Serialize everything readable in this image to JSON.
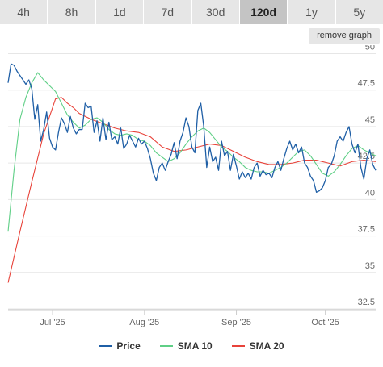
{
  "range_buttons": [
    {
      "label": "4h",
      "active": false
    },
    {
      "label": "8h",
      "active": false
    },
    {
      "label": "1d",
      "active": false
    },
    {
      "label": "7d",
      "active": false
    },
    {
      "label": "30d",
      "active": false
    },
    {
      "label": "120d",
      "active": true
    },
    {
      "label": "1y",
      "active": false
    },
    {
      "label": "5y",
      "active": false
    }
  ],
  "remove_graph_label": "remove graph",
  "colors": {
    "price": "#1f5fa6",
    "sma10": "#5fcf86",
    "sma20": "#e8433a",
    "grid": "#e6e6e6"
  },
  "chart_data": {
    "type": "line",
    "title": "",
    "xlabel": "",
    "ylabel": "",
    "ylim": [
      32.5,
      50
    ],
    "yticks": [
      32.5,
      35,
      37.5,
      40,
      42.5,
      45,
      47.5,
      50
    ],
    "xlim": [
      "2025-06-16",
      "2025-10-18"
    ],
    "xticks": [
      {
        "date": "2025-07-01",
        "label": "Jul '25"
      },
      {
        "date": "2025-08-01",
        "label": "Aug '25"
      },
      {
        "date": "2025-09-01",
        "label": "Sep '25"
      },
      {
        "date": "2025-10-01",
        "label": "Oct '25"
      }
    ],
    "grid": true,
    "legend_position": "bottom-center",
    "series": [
      {
        "name": "Price",
        "color_key": "price",
        "points": [
          [
            "2025-06-16",
            48.0
          ],
          [
            "2025-06-17",
            49.3
          ],
          [
            "2025-06-18",
            49.2
          ],
          [
            "2025-06-19",
            48.8
          ],
          [
            "2025-06-20",
            48.5
          ],
          [
            "2025-06-21",
            48.2
          ],
          [
            "2025-06-22",
            47.9
          ],
          [
            "2025-06-23",
            48.2
          ],
          [
            "2025-06-24",
            47.6
          ],
          [
            "2025-06-25",
            45.5
          ],
          [
            "2025-06-26",
            46.5
          ],
          [
            "2025-06-27",
            44.0
          ],
          [
            "2025-06-28",
            44.8
          ],
          [
            "2025-06-29",
            46.0
          ],
          [
            "2025-06-30",
            44.2
          ],
          [
            "2025-07-01",
            43.6
          ],
          [
            "2025-07-02",
            43.4
          ],
          [
            "2025-07-03",
            44.6
          ],
          [
            "2025-07-04",
            45.6
          ],
          [
            "2025-07-05",
            45.2
          ],
          [
            "2025-07-06",
            44.6
          ],
          [
            "2025-07-07",
            45.7
          ],
          [
            "2025-07-08",
            44.9
          ],
          [
            "2025-07-09",
            44.5
          ],
          [
            "2025-07-10",
            44.8
          ],
          [
            "2025-07-11",
            44.8
          ],
          [
            "2025-07-12",
            46.6
          ],
          [
            "2025-07-13",
            46.3
          ],
          [
            "2025-07-14",
            46.4
          ],
          [
            "2025-07-15",
            44.6
          ],
          [
            "2025-07-16",
            45.4
          ],
          [
            "2025-07-17",
            44.0
          ],
          [
            "2025-07-18",
            45.6
          ],
          [
            "2025-07-19",
            44.1
          ],
          [
            "2025-07-20",
            45.3
          ],
          [
            "2025-07-21",
            44.1
          ],
          [
            "2025-07-22",
            44.3
          ],
          [
            "2025-07-23",
            43.8
          ],
          [
            "2025-07-24",
            44.9
          ],
          [
            "2025-07-25",
            43.5
          ],
          [
            "2025-07-26",
            43.8
          ],
          [
            "2025-07-27",
            44.4
          ],
          [
            "2025-07-28",
            44.0
          ],
          [
            "2025-07-29",
            43.6
          ],
          [
            "2025-07-30",
            44.2
          ],
          [
            "2025-07-31",
            43.8
          ],
          [
            "2025-08-01",
            44.0
          ],
          [
            "2025-08-02",
            43.5
          ],
          [
            "2025-08-03",
            42.8
          ],
          [
            "2025-08-04",
            41.8
          ],
          [
            "2025-08-05",
            41.3
          ],
          [
            "2025-08-06",
            42.2
          ],
          [
            "2025-08-07",
            42.5
          ],
          [
            "2025-08-08",
            42.0
          ],
          [
            "2025-08-09",
            42.6
          ],
          [
            "2025-08-10",
            43.1
          ],
          [
            "2025-08-11",
            43.9
          ],
          [
            "2025-08-12",
            42.8
          ],
          [
            "2025-08-13",
            44.0
          ],
          [
            "2025-08-14",
            44.6
          ],
          [
            "2025-08-15",
            45.6
          ],
          [
            "2025-08-16",
            45.0
          ],
          [
            "2025-08-17",
            43.6
          ],
          [
            "2025-08-18",
            43.2
          ],
          [
            "2025-08-19",
            46.1
          ],
          [
            "2025-08-20",
            46.6
          ],
          [
            "2025-08-21",
            45.0
          ],
          [
            "2025-08-22",
            42.2
          ],
          [
            "2025-08-23",
            43.6
          ],
          [
            "2025-08-24",
            42.6
          ],
          [
            "2025-08-25",
            42.9
          ],
          [
            "2025-08-26",
            42.0
          ],
          [
            "2025-08-27",
            44.0
          ],
          [
            "2025-08-28",
            43.0
          ],
          [
            "2025-08-29",
            43.3
          ],
          [
            "2025-08-30",
            42.0
          ],
          [
            "2025-08-31",
            43.1
          ],
          [
            "2025-09-01",
            42.3
          ],
          [
            "2025-09-02",
            41.4
          ],
          [
            "2025-09-03",
            41.9
          ],
          [
            "2025-09-04",
            41.5
          ],
          [
            "2025-09-05",
            41.8
          ],
          [
            "2025-09-06",
            41.4
          ],
          [
            "2025-09-07",
            42.2
          ],
          [
            "2025-09-08",
            42.5
          ],
          [
            "2025-09-09",
            41.6
          ],
          [
            "2025-09-10",
            42.0
          ],
          [
            "2025-09-11",
            41.7
          ],
          [
            "2025-09-12",
            41.8
          ],
          [
            "2025-09-13",
            41.5
          ],
          [
            "2025-09-14",
            42.2
          ],
          [
            "2025-09-15",
            42.6
          ],
          [
            "2025-09-16",
            42.0
          ],
          [
            "2025-09-17",
            42.8
          ],
          [
            "2025-09-18",
            43.5
          ],
          [
            "2025-09-19",
            44.0
          ],
          [
            "2025-09-20",
            43.4
          ],
          [
            "2025-09-21",
            43.8
          ],
          [
            "2025-09-22",
            43.2
          ],
          [
            "2025-09-23",
            43.6
          ],
          [
            "2025-09-24",
            42.5
          ],
          [
            "2025-09-25",
            42.2
          ],
          [
            "2025-09-26",
            41.6
          ],
          [
            "2025-09-27",
            41.3
          ],
          [
            "2025-09-28",
            40.5
          ],
          [
            "2025-09-29",
            40.6
          ],
          [
            "2025-09-30",
            40.8
          ],
          [
            "2025-10-01",
            41.3
          ],
          [
            "2025-10-02",
            42.2
          ],
          [
            "2025-10-03",
            42.4
          ],
          [
            "2025-10-04",
            43.0
          ],
          [
            "2025-10-05",
            44.0
          ],
          [
            "2025-10-06",
            44.3
          ],
          [
            "2025-10-07",
            44.0
          ],
          [
            "2025-10-08",
            44.6
          ],
          [
            "2025-10-09",
            45.0
          ],
          [
            "2025-10-10",
            43.8
          ],
          [
            "2025-10-11",
            43.2
          ],
          [
            "2025-10-12",
            43.8
          ],
          [
            "2025-10-13",
            42.2
          ],
          [
            "2025-10-14",
            41.4
          ],
          [
            "2025-10-15",
            42.8
          ],
          [
            "2025-10-16",
            43.4
          ],
          [
            "2025-10-17",
            42.4
          ],
          [
            "2025-10-18",
            42.0
          ]
        ]
      },
      {
        "name": "SMA 10",
        "color_key": "sma10",
        "points": [
          [
            "2025-06-16",
            37.8
          ],
          [
            "2025-06-18",
            42.0
          ],
          [
            "2025-06-20",
            45.5
          ],
          [
            "2025-06-22",
            47.0
          ],
          [
            "2025-06-24",
            48.0
          ],
          [
            "2025-06-26",
            48.7
          ],
          [
            "2025-06-28",
            48.2
          ],
          [
            "2025-06-30",
            47.8
          ],
          [
            "2025-07-02",
            47.4
          ],
          [
            "2025-07-04",
            46.6
          ],
          [
            "2025-07-06",
            45.8
          ],
          [
            "2025-07-08",
            45.3
          ],
          [
            "2025-07-10",
            44.9
          ],
          [
            "2025-07-12",
            45.1
          ],
          [
            "2025-07-14",
            45.5
          ],
          [
            "2025-07-16",
            45.6
          ],
          [
            "2025-07-18",
            45.3
          ],
          [
            "2025-07-20",
            44.8
          ],
          [
            "2025-07-22",
            44.5
          ],
          [
            "2025-07-24",
            44.4
          ],
          [
            "2025-07-26",
            44.5
          ],
          [
            "2025-07-28",
            44.4
          ],
          [
            "2025-07-30",
            44.1
          ],
          [
            "2025-08-01",
            44.0
          ],
          [
            "2025-08-03",
            43.7
          ],
          [
            "2025-08-05",
            43.2
          ],
          [
            "2025-08-07",
            42.9
          ],
          [
            "2025-08-09",
            42.6
          ],
          [
            "2025-08-11",
            42.8
          ],
          [
            "2025-08-13",
            43.2
          ],
          [
            "2025-08-15",
            43.8
          ],
          [
            "2025-08-17",
            44.3
          ],
          [
            "2025-08-19",
            44.7
          ],
          [
            "2025-08-21",
            44.9
          ],
          [
            "2025-08-23",
            44.6
          ],
          [
            "2025-08-25",
            44.1
          ],
          [
            "2025-08-27",
            43.6
          ],
          [
            "2025-08-29",
            43.3
          ],
          [
            "2025-08-31",
            42.9
          ],
          [
            "2025-09-02",
            42.6
          ],
          [
            "2025-09-04",
            42.2
          ],
          [
            "2025-09-06",
            42.0
          ],
          [
            "2025-09-08",
            41.9
          ],
          [
            "2025-09-10",
            41.9
          ],
          [
            "2025-09-12",
            41.8
          ],
          [
            "2025-09-14",
            42.0
          ],
          [
            "2025-09-16",
            42.2
          ],
          [
            "2025-09-18",
            42.5
          ],
          [
            "2025-09-20",
            42.9
          ],
          [
            "2025-09-22",
            43.3
          ],
          [
            "2025-09-24",
            43.4
          ],
          [
            "2025-09-26",
            43.0
          ],
          [
            "2025-09-28",
            42.4
          ],
          [
            "2025-09-30",
            41.8
          ],
          [
            "2025-10-02",
            41.6
          ],
          [
            "2025-10-04",
            41.9
          ],
          [
            "2025-10-06",
            42.4
          ],
          [
            "2025-10-08",
            43.0
          ],
          [
            "2025-10-10",
            43.5
          ],
          [
            "2025-10-12",
            43.7
          ],
          [
            "2025-10-14",
            43.4
          ],
          [
            "2025-10-16",
            43.2
          ],
          [
            "2025-10-18",
            43.0
          ]
        ]
      },
      {
        "name": "SMA 20",
        "color_key": "sma20",
        "points": [
          [
            "2025-06-16",
            34.3
          ],
          [
            "2025-06-20",
            37.8
          ],
          [
            "2025-06-24",
            41.2
          ],
          [
            "2025-06-28",
            44.5
          ],
          [
            "2025-07-02",
            46.9
          ],
          [
            "2025-07-04",
            47.0
          ],
          [
            "2025-07-06",
            46.6
          ],
          [
            "2025-07-08",
            46.3
          ],
          [
            "2025-07-10",
            45.9
          ],
          [
            "2025-07-14",
            45.5
          ],
          [
            "2025-07-18",
            45.2
          ],
          [
            "2025-07-22",
            44.9
          ],
          [
            "2025-07-26",
            44.7
          ],
          [
            "2025-07-30",
            44.6
          ],
          [
            "2025-08-03",
            44.3
          ],
          [
            "2025-08-07",
            43.6
          ],
          [
            "2025-08-11",
            43.3
          ],
          [
            "2025-08-15",
            43.4
          ],
          [
            "2025-08-19",
            43.6
          ],
          [
            "2025-08-23",
            43.8
          ],
          [
            "2025-08-27",
            43.7
          ],
          [
            "2025-08-31",
            43.3
          ],
          [
            "2025-09-04",
            42.9
          ],
          [
            "2025-09-08",
            42.6
          ],
          [
            "2025-09-12",
            42.4
          ],
          [
            "2025-09-16",
            42.4
          ],
          [
            "2025-09-20",
            42.5
          ],
          [
            "2025-09-24",
            42.7
          ],
          [
            "2025-09-28",
            42.7
          ],
          [
            "2025-10-02",
            42.5
          ],
          [
            "2025-10-06",
            42.3
          ],
          [
            "2025-10-10",
            42.6
          ],
          [
            "2025-10-14",
            42.7
          ],
          [
            "2025-10-18",
            42.6
          ]
        ]
      }
    ]
  }
}
